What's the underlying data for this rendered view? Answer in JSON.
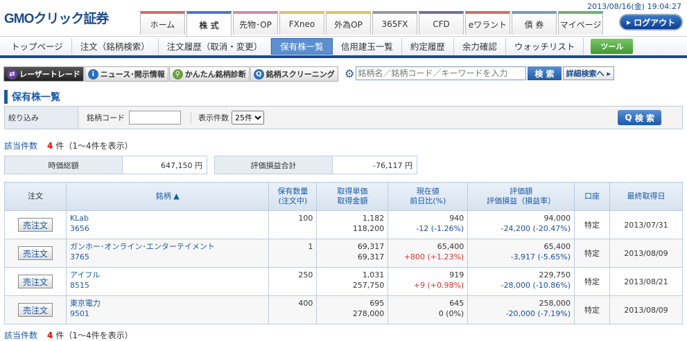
{
  "header": {
    "logo": "GMOクリック証券",
    "datetime": "2013/08/16(金) 19:04:27",
    "logout": "ログアウト",
    "tabs": [
      {
        "label": "ホーム",
        "color": "#c87070"
      },
      {
        "label": "株 式",
        "color": "#4a7ac8",
        "active": true
      },
      {
        "label": "先物･OP",
        "color": "#d58aa8"
      },
      {
        "label": "FXneo",
        "color": "#e0c070"
      },
      {
        "label": "外為OP",
        "color": "#e0c070"
      },
      {
        "label": "365FX",
        "color": "#999999"
      },
      {
        "label": "CFD",
        "color": "#7070a0"
      },
      {
        "label": "eワラント",
        "color": "#c87070"
      },
      {
        "label": "債 券",
        "color": "#70a0b0"
      },
      {
        "label": "マイページ",
        "color": "#70b070"
      }
    ]
  },
  "nav": {
    "items": [
      "トップページ",
      "注文（銘柄検索）",
      "注文履歴（取消・変更）",
      "保有株一覧",
      "信用建玉一覧",
      "約定履歴",
      "余力確認",
      "ウォッチリスト"
    ],
    "active": 3,
    "tool": "ツール"
  },
  "tools": [
    "レーザートレード",
    "ニュース･開示情報",
    "かんたん銘柄診断",
    "銘柄スクリーニング"
  ],
  "search": {
    "placeholder": "銘柄名／銘柄コード／キーワードを入力",
    "button": "検 索",
    "advanced": "詳細検索へ"
  },
  "title": "保有株一覧",
  "filter": {
    "label": "絞り込み",
    "code_label": "銘柄コード",
    "count_label": "表示件数",
    "count_value": "25件",
    "search": "検 索"
  },
  "count": {
    "label": "該当件数",
    "num": "4",
    "unit": "件",
    "range": "（1～4件を表示）"
  },
  "summary": {
    "market_label": "時価総額",
    "market_value": "647,150 円",
    "pl_label": "評価損益合計",
    "pl_value": "-76,117 円"
  },
  "table": {
    "headers": [
      "注文",
      "銘柄 ▲",
      "保有数量\n(注文中)",
      "取得単価\n取得金額",
      "現在値\n前日比(%)",
      "評価額\n評価損益（損益率）",
      "口座",
      "最終取得日"
    ],
    "sell_label": "売注文",
    "rows": [
      {
        "name": "KLab",
        "code": "3656",
        "qty": "100",
        "unit": "1,182",
        "cost": "118,200",
        "price": "940",
        "chg": "-12 (-1.26%)",
        "chg_dir": "down",
        "value": "94,000",
        "pl": "-24,200 (-20.47%)",
        "account": "特定",
        "date": "2013/07/31"
      },
      {
        "name": "ガンホー･オンライン･エンターテイメント",
        "code": "3765",
        "qty": "1",
        "unit": "69,317",
        "cost": "69,317",
        "price": "65,400",
        "chg": "+800 (+1.23%)",
        "chg_dir": "up",
        "value": "65,400",
        "pl": "-3,917 (-5.65%)",
        "account": "特定",
        "date": "2013/08/09"
      },
      {
        "name": "アイフル",
        "code": "8515",
        "qty": "250",
        "unit": "1,031",
        "cost": "257,750",
        "price": "919",
        "chg": "+9 (+0.98%)",
        "chg_dir": "up",
        "value": "229,750",
        "pl": "-28,000 (-10.86%)",
        "account": "特定",
        "date": "2013/08/21"
      },
      {
        "name": "東京電力",
        "code": "9501",
        "qty": "400",
        "unit": "695",
        "cost": "278,000",
        "price": "645",
        "chg": "0 (0%)",
        "chg_dir": "flat",
        "value": "258,000",
        "pl": "-20,000 (-7.19%)",
        "account": "特定",
        "date": "2013/08/09"
      }
    ]
  }
}
